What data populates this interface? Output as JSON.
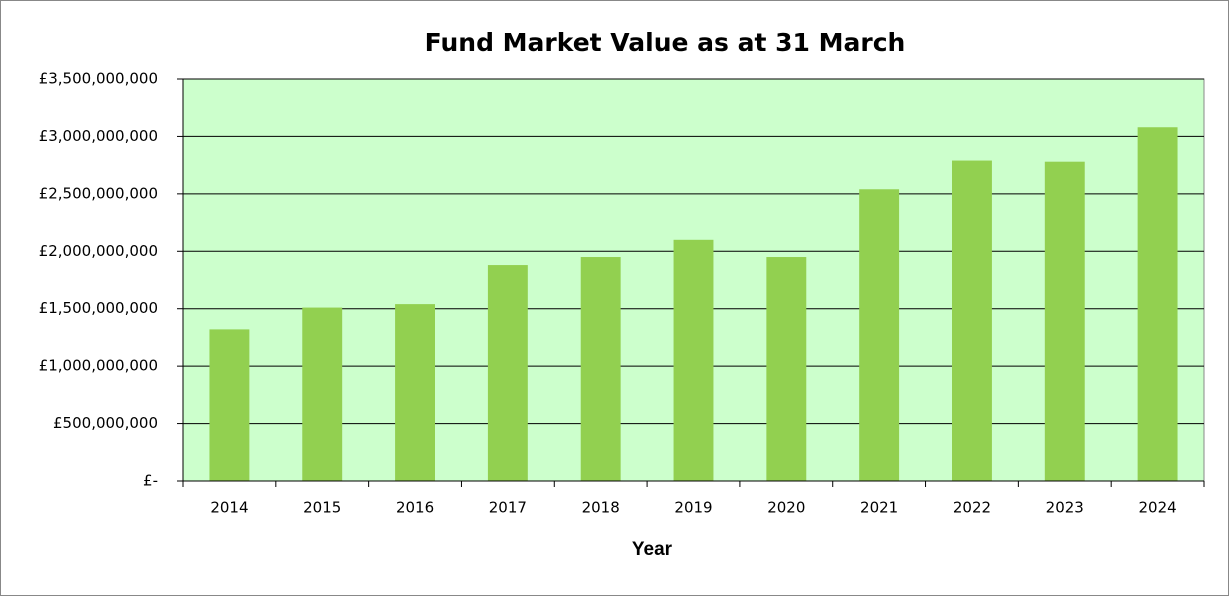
{
  "chart_data": {
    "type": "bar",
    "title": "Fund Market Value as at 31 March",
    "x_label": "Year",
    "categories": [
      "2014",
      "2015",
      "2016",
      "2017",
      "2018",
      "2019",
      "2020",
      "2021",
      "2022",
      "2023",
      "2024"
    ],
    "values": [
      1320000000,
      1510000000,
      1540000000,
      1880000000,
      1950000000,
      2100000000,
      1950000000,
      2540000000,
      2790000000,
      2780000000,
      3080000000
    ],
    "color": "#92d050",
    "plot_background": "#ccffcc",
    "ylim": [
      0,
      3500000000
    ],
    "yticks": [
      {
        "value": 0,
        "label": "£-"
      },
      {
        "value": 500000000,
        "label": "£500,000,000"
      },
      {
        "value": 1000000000,
        "label": "£1,000,000,000"
      },
      {
        "value": 1500000000,
        "label": "£1,500,000,000"
      },
      {
        "value": 2000000000,
        "label": "£2,000,000,000"
      },
      {
        "value": 2500000000,
        "label": "£2,500,000,000"
      },
      {
        "value": 3000000000,
        "label": "£3,000,000,000"
      },
      {
        "value": 3500000000,
        "label": "£3,500,000,000"
      }
    ],
    "grid": true
  }
}
